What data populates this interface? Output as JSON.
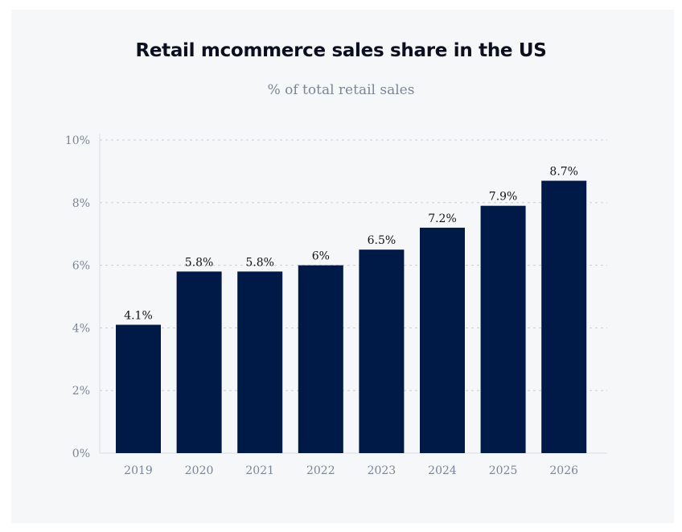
{
  "chart_data": {
    "type": "bar",
    "title": "Retail mcommerce sales share in the US",
    "subtitle": "% of total retail sales",
    "categories": [
      "2019",
      "2020",
      "2021",
      "2022",
      "2023",
      "2024",
      "2025",
      "2026"
    ],
    "values": [
      4.1,
      5.8,
      5.8,
      6.0,
      6.5,
      7.2,
      7.9,
      8.7
    ],
    "data_labels": [
      "4.1%",
      "5.8%",
      "5.8%",
      "6%",
      "6.5%",
      "7.2%",
      "7.9%",
      "8.7%"
    ],
    "yticks": [
      0,
      2,
      4,
      6,
      8,
      10
    ],
    "ytick_labels": [
      "0%",
      "2%",
      "4%",
      "6%",
      "8%",
      "10%"
    ],
    "ylim": [
      0,
      10
    ],
    "xlabel": "",
    "ylabel": "",
    "grid": true,
    "bar_color": "#001a48",
    "background_color": "#f5f7f9"
  }
}
